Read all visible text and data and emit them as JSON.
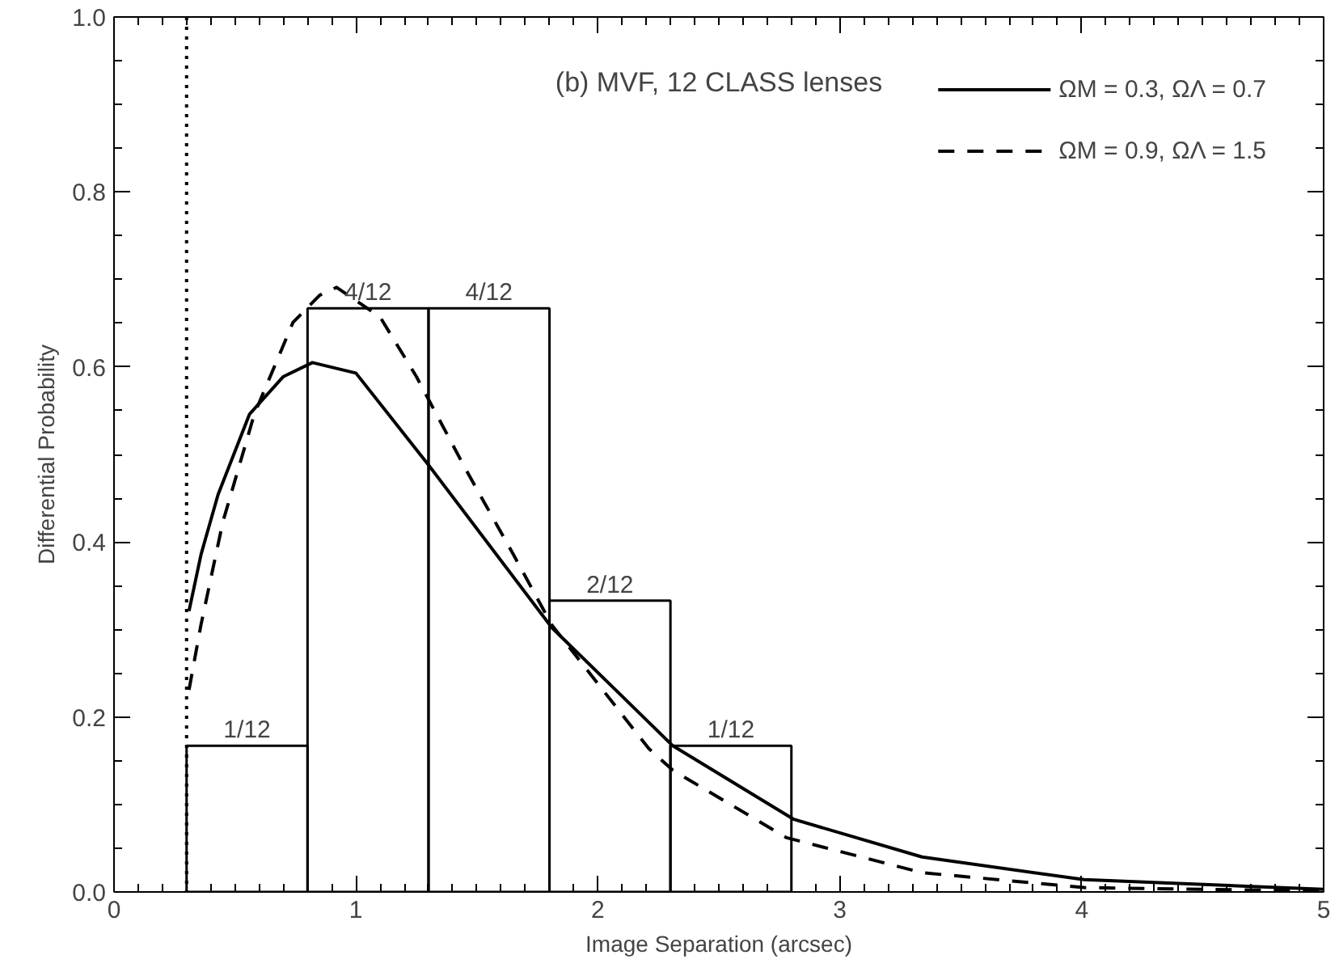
{
  "chart_data": {
    "type": "histogram",
    "title": "(b) MVF, 12 CLASS lenses",
    "xlabel": "Image Separation (arcsec)",
    "ylabel": "Differential Probability",
    "bins": [
      0.3,
      0.8,
      1.3,
      1.8,
      2.3,
      2.8
    ],
    "values": [
      0.167,
      0.667,
      0.667,
      0.333,
      0.167
    ],
    "color": "#000000",
    "annotations": [
      {
        "text": "1/12",
        "x": 0.55,
        "y": 0.167
      },
      {
        "text": "4/12",
        "x": 1.05,
        "y": 0.667
      },
      {
        "text": "4/12",
        "x": 1.55,
        "y": 0.667
      },
      {
        "text": "2/12",
        "x": 2.05,
        "y": 0.333
      },
      {
        "text": "1/12",
        "x": 2.55,
        "y": 0.167
      }
    ],
    "series": [
      {
        "name": "ΩM = 0.3, ΩΛ = 0.7",
        "type": "line",
        "line_style": "solid",
        "color": "#000000",
        "x": [
          0.31,
          0.36,
          0.43,
          0.56,
          0.7,
          0.82,
          1.0,
          1.3,
          1.81,
          2.31,
          2.81,
          3.34,
          4.01,
          5.0
        ],
        "values": [
          0.321,
          0.386,
          0.454,
          0.546,
          0.589,
          0.605,
          0.593,
          0.488,
          0.302,
          0.167,
          0.083,
          0.04,
          0.014,
          0.003
        ]
      },
      {
        "name": "ΩM = 0.9, ΩΛ = 1.5",
        "type": "line",
        "line_style": "dashed",
        "color": "#000000",
        "x": [
          0.31,
          0.36,
          0.45,
          0.58,
          0.74,
          0.85,
          0.92,
          1.1,
          1.25,
          1.45,
          1.65,
          1.81,
          2.21,
          2.31,
          2.78,
          3.34,
          4.01,
          5.0
        ],
        "values": [
          0.231,
          0.306,
          0.423,
          0.546,
          0.651,
          0.682,
          0.691,
          0.657,
          0.589,
          0.485,
          0.386,
          0.305,
          0.164,
          0.139,
          0.062,
          0.022,
          0.005,
          0.001
        ]
      }
    ],
    "ref_lines": [
      {
        "axis": "x",
        "value": 0.3,
        "line_style": "dotted",
        "color": "#000000"
      }
    ],
    "xlim": [
      0,
      5
    ],
    "ylim": [
      0,
      1
    ],
    "xticks": [
      0,
      1,
      2,
      3,
      4,
      5
    ],
    "yticks": [
      {
        "value": 0,
        "label": "0.0"
      },
      {
        "value": 0.2,
        "label": "0.2"
      },
      {
        "value": 0.4,
        "label": "0.4"
      },
      {
        "value": 0.6,
        "label": "0.6"
      },
      {
        "value": 0.8,
        "label": "0.8"
      },
      {
        "value": 1,
        "label": "1.0"
      }
    ],
    "grid": false,
    "legend": "top right"
  }
}
